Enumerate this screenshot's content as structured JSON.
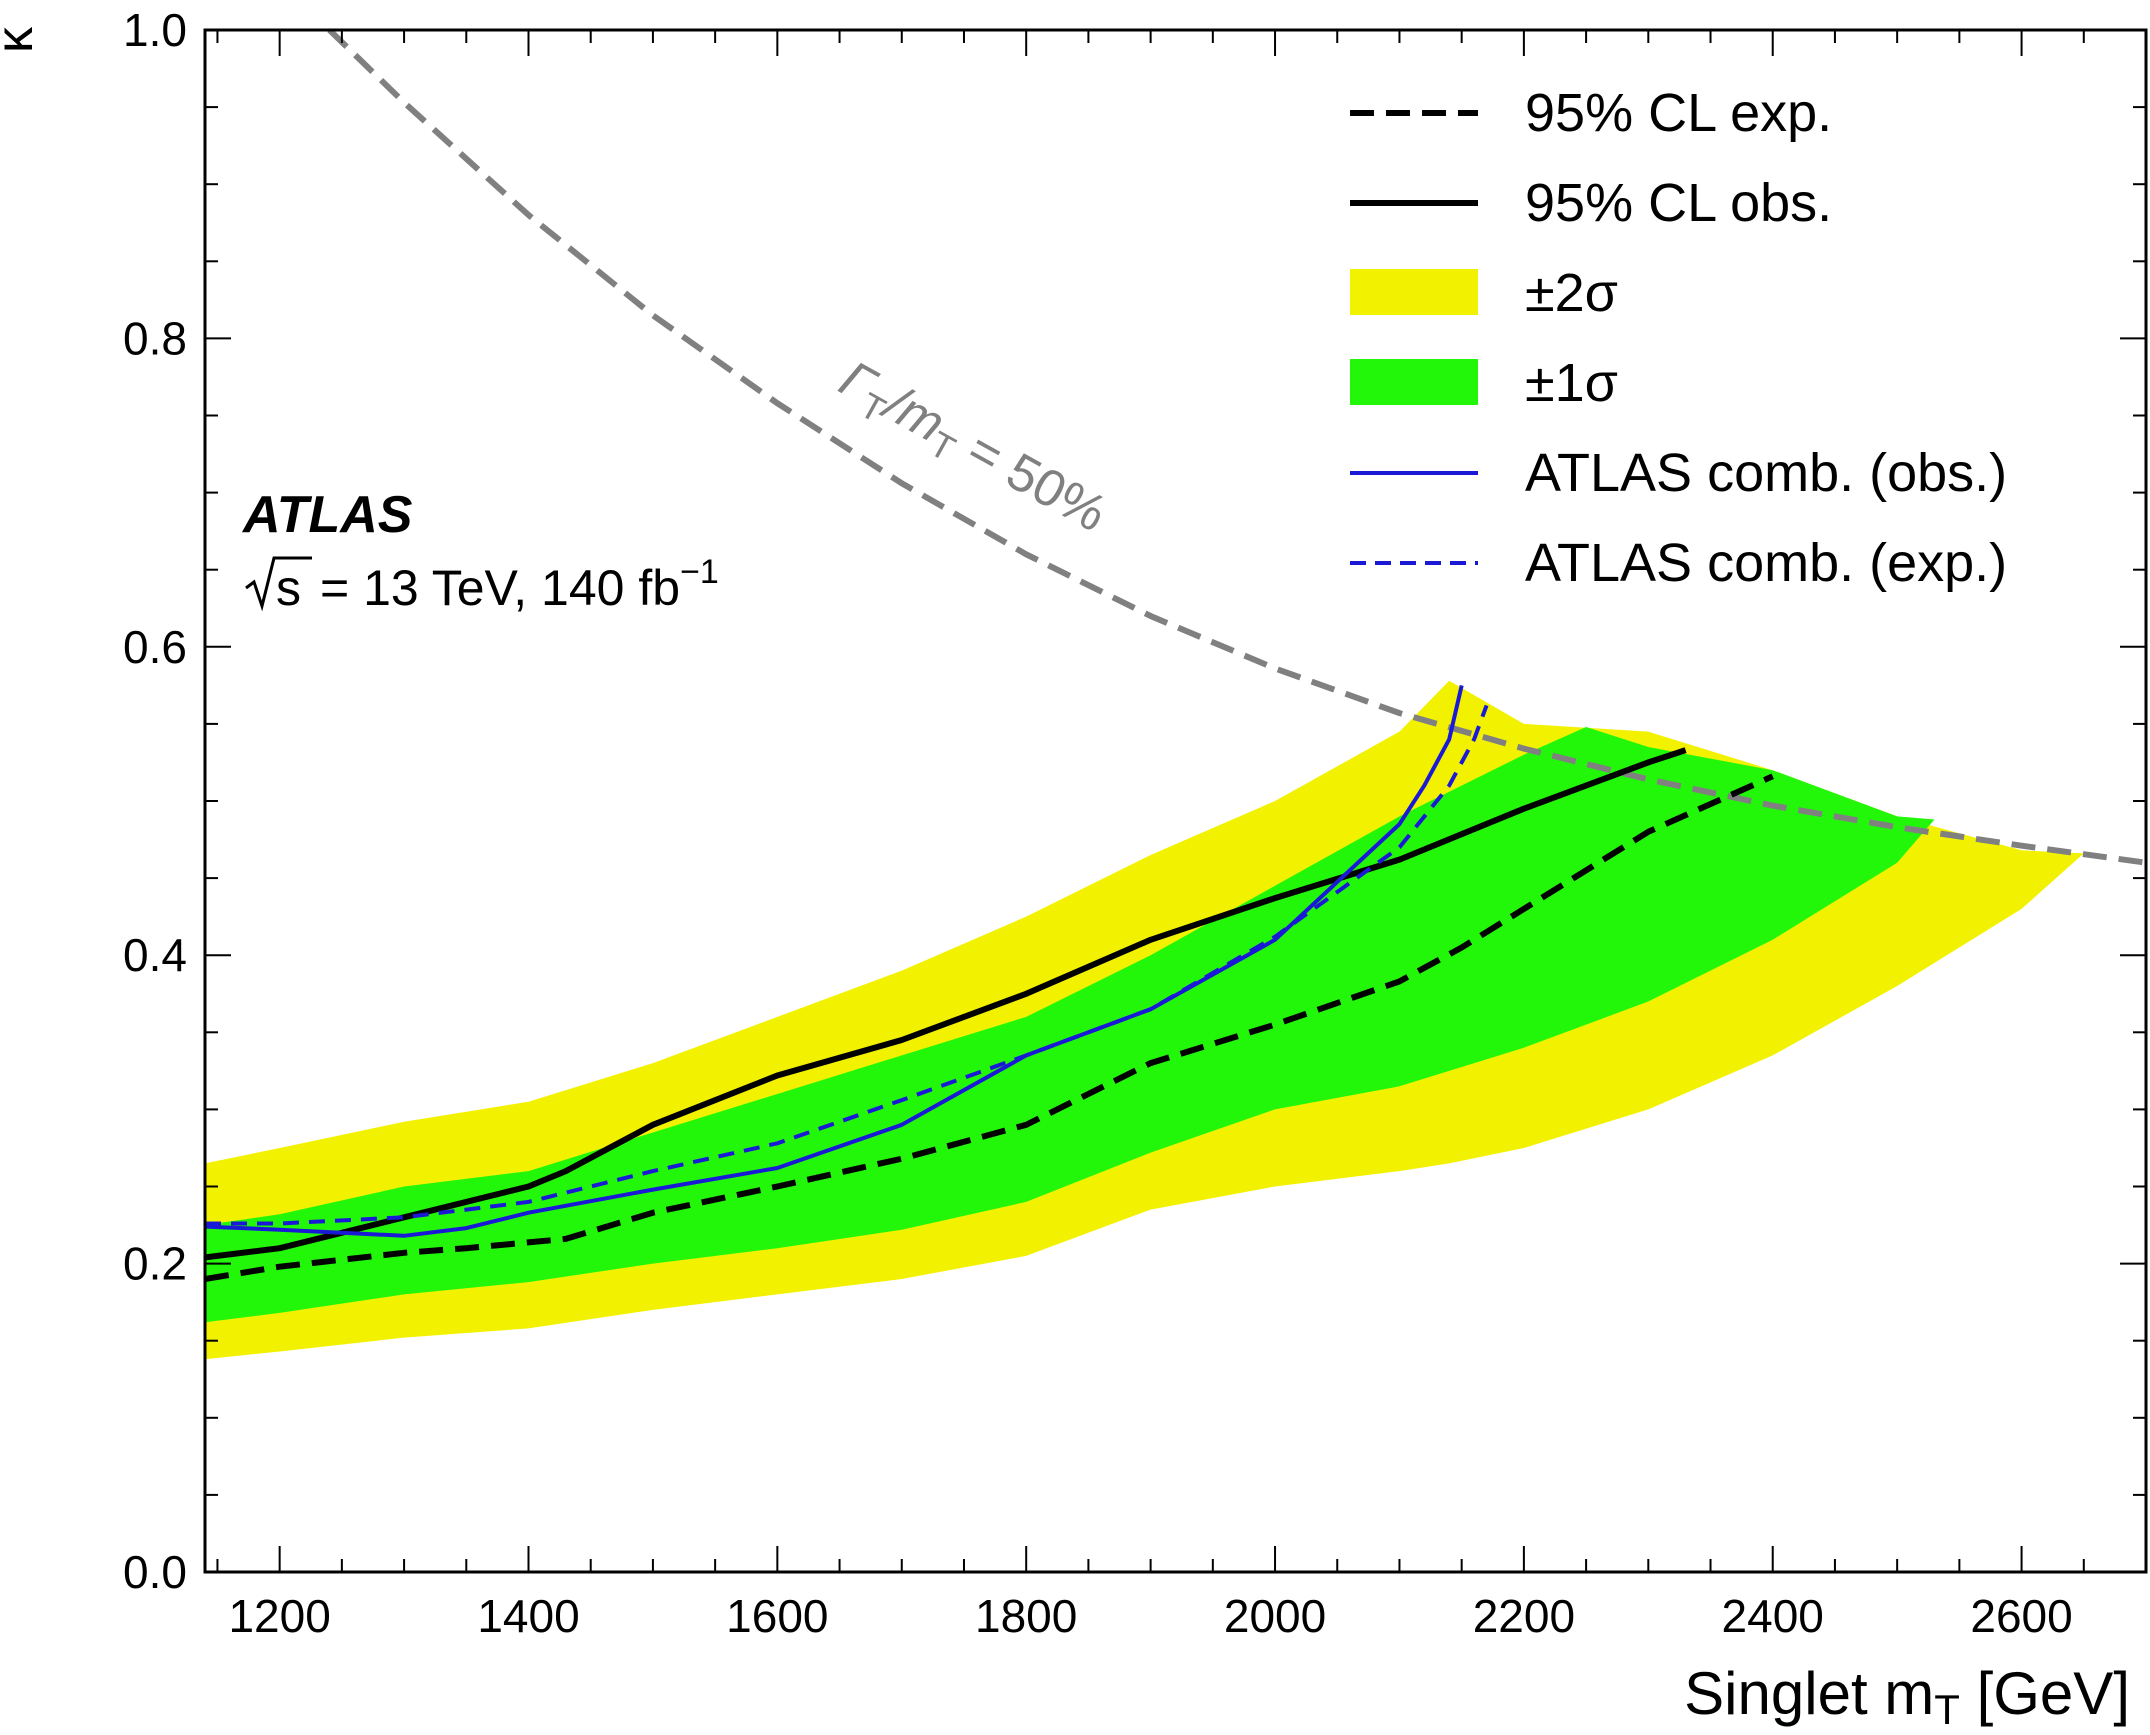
{
  "chart_data": {
    "type": "line",
    "experiment": "ATLAS",
    "energy_label": "s",
    "energy_text": "=  13 TeV, 140 fb",
    "energy_sup": "−1",
    "xlabel": "Singlet m",
    "xlabel_sub": "T",
    "xlabel_unit": " [GeV]",
    "ylabel": "κ",
    "xlim": [
      1140,
      2700
    ],
    "ylim": [
      0.0,
      1.0
    ],
    "xticks": [
      1200,
      1400,
      1600,
      1800,
      2000,
      2200,
      2400,
      2600
    ],
    "yticks": [
      0.0,
      0.2,
      0.4,
      0.6,
      0.8,
      1.0
    ],
    "ytick_labels": [
      "0.0",
      "0.2",
      "0.4",
      "0.6",
      "0.8",
      "1.0"
    ],
    "legend_position": "top-right",
    "legend": [
      {
        "label": "95% CL exp.",
        "style": "black-dashed"
      },
      {
        "label": "95% CL obs.",
        "style": "black-solid"
      },
      {
        "label": "±2σ",
        "style": "yellow-band"
      },
      {
        "label": "±1σ",
        "style": "green-band"
      },
      {
        "label": "ATLAS comb. (obs.)",
        "style": "blue-solid"
      },
      {
        "label": "ATLAS comb. (exp.)",
        "style": "blue-dashed"
      }
    ],
    "colors": {
      "band_2sigma": "#f2f200",
      "band_1sigma": "#22f70a",
      "expected": "#000000",
      "observed": "#000000",
      "comb": "#1a1ad6",
      "width_line": "#808080"
    },
    "width_curve": {
      "label": "Γ",
      "label_sub1": "T",
      "label_mid": "/m",
      "label_sub2": "T",
      "label_tail": " = 50%",
      "x": [
        1240,
        1300,
        1400,
        1500,
        1600,
        1700,
        1800,
        1900,
        2000,
        2100,
        2200,
        2300,
        2400,
        2500,
        2600,
        2700
      ],
      "y": [
        1.0,
        0.953,
        0.88,
        0.815,
        0.758,
        0.706,
        0.66,
        0.62,
        0.586,
        0.557,
        0.534,
        0.514,
        0.497,
        0.483,
        0.471,
        0.46
      ]
    },
    "series": [
      {
        "name": "±2σ",
        "band": true,
        "x": [
          1140,
          1200,
          1300,
          1400,
          1500,
          1600,
          1700,
          1800,
          1900,
          2000,
          2100,
          2140,
          2200,
          2300,
          2400,
          2500,
          2600,
          2650
        ],
        "upper": [
          0.265,
          0.275,
          0.292,
          0.305,
          0.33,
          0.36,
          0.39,
          0.425,
          0.465,
          0.5,
          0.545,
          0.578,
          0.55,
          0.545,
          0.52,
          0.49,
          0.468,
          0.466
        ],
        "lower": [
          0.138,
          0.143,
          0.152,
          0.158,
          0.17,
          0.18,
          0.19,
          0.205,
          0.235,
          0.25,
          0.26,
          0.265,
          0.275,
          0.3,
          0.335,
          0.38,
          0.43,
          0.466
        ]
      },
      {
        "name": "±1σ",
        "band": true,
        "x": [
          1140,
          1200,
          1300,
          1400,
          1500,
          1600,
          1700,
          1800,
          1900,
          2000,
          2100,
          2200,
          2250,
          2300,
          2400,
          2500,
          2530
        ],
        "upper": [
          0.225,
          0.232,
          0.25,
          0.26,
          0.285,
          0.31,
          0.335,
          0.36,
          0.4,
          0.445,
          0.49,
          0.53,
          0.548,
          0.535,
          0.52,
          0.49,
          0.488
        ],
        "lower": [
          0.162,
          0.168,
          0.18,
          0.188,
          0.2,
          0.21,
          0.222,
          0.24,
          0.272,
          0.3,
          0.315,
          0.34,
          0.355,
          0.37,
          0.41,
          0.46,
          0.488
        ]
      },
      {
        "name": "95% CL exp.",
        "x": [
          1140,
          1200,
          1300,
          1350,
          1430,
          1500,
          1600,
          1700,
          1800,
          1900,
          2000,
          2100,
          2150,
          2200,
          2300,
          2400
        ],
        "y": [
          0.19,
          0.198,
          0.207,
          0.21,
          0.216,
          0.233,
          0.25,
          0.268,
          0.29,
          0.33,
          0.355,
          0.383,
          0.405,
          0.43,
          0.48,
          0.516
        ]
      },
      {
        "name": "95% CL obs.",
        "x": [
          1140,
          1200,
          1300,
          1400,
          1430,
          1500,
          1600,
          1700,
          1800,
          1900,
          2000,
          2100,
          2200,
          2300,
          2330
        ],
        "y": [
          0.204,
          0.21,
          0.23,
          0.25,
          0.26,
          0.29,
          0.322,
          0.345,
          0.375,
          0.41,
          0.437,
          0.462,
          0.495,
          0.525,
          0.533
        ]
      },
      {
        "name": "ATLAS comb. (obs.)",
        "x": [
          1140,
          1200,
          1300,
          1350,
          1400,
          1500,
          1600,
          1700,
          1800,
          1900,
          2000,
          2100,
          2120,
          2140,
          2150
        ],
        "y": [
          0.224,
          0.222,
          0.218,
          0.223,
          0.233,
          0.248,
          0.262,
          0.29,
          0.335,
          0.365,
          0.41,
          0.485,
          0.51,
          0.54,
          0.575
        ]
      },
      {
        "name": "ATLAS comb. (exp.)",
        "x": [
          1140,
          1200,
          1300,
          1400,
          1500,
          1600,
          1700,
          1800,
          1900,
          2000,
          2100,
          2140,
          2160,
          2170
        ],
        "y": [
          0.226,
          0.226,
          0.23,
          0.24,
          0.26,
          0.278,
          0.306,
          0.335,
          0.365,
          0.412,
          0.47,
          0.51,
          0.54,
          0.562
        ]
      }
    ]
  }
}
